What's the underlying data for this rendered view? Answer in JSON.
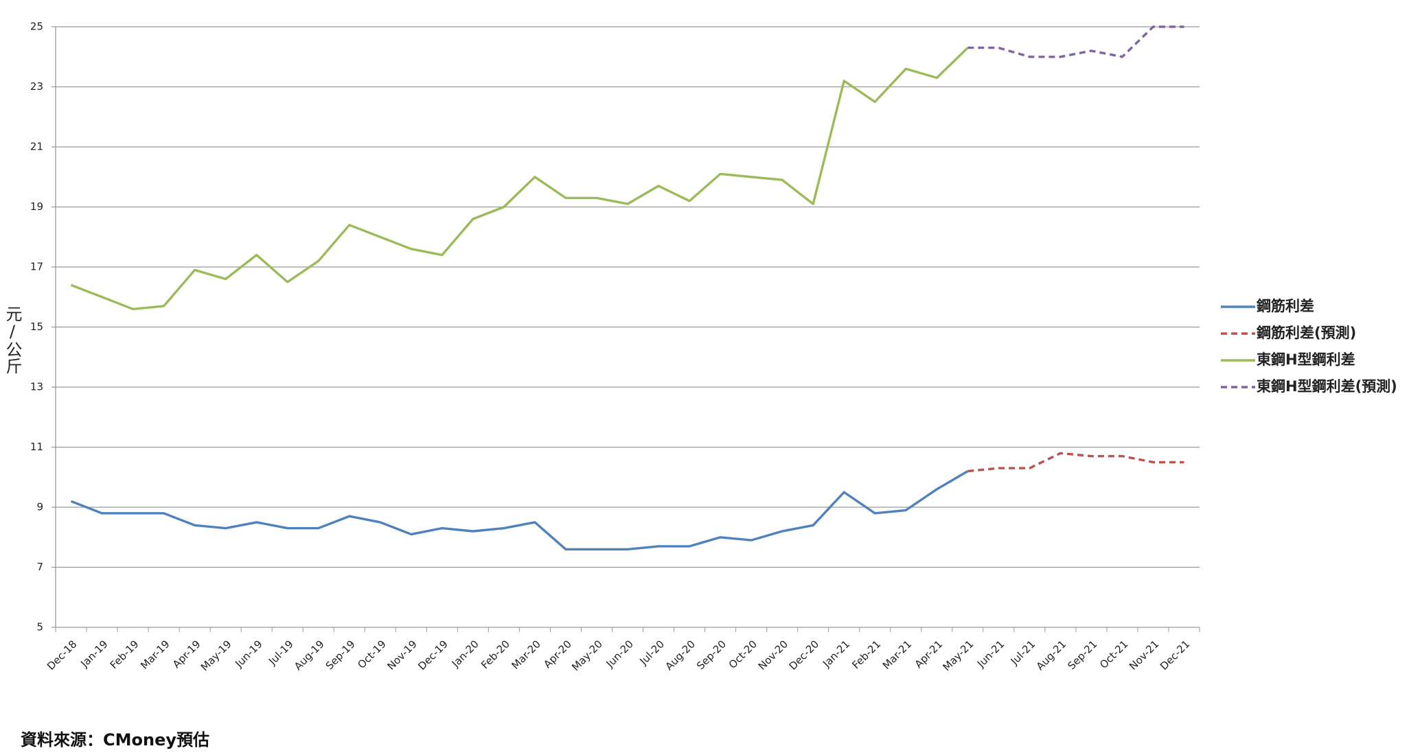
{
  "chart_data": {
    "type": "line",
    "y_label": "元/公斤",
    "source": "資料來源：CMoney預估",
    "categories": [
      "Dec-18",
      "Jan-19",
      "Feb-19",
      "Mar-19",
      "Apr-19",
      "May-19",
      "Jun-19",
      "Jul-19",
      "Aug-19",
      "Sep-19",
      "Oct-19",
      "Nov-19",
      "Dec-19",
      "Jan-20",
      "Feb-20",
      "Mar-20",
      "Apr-20",
      "May-20",
      "Jun-20",
      "Jul-20",
      "Aug-20",
      "Sep-20",
      "Oct-20",
      "Nov-20",
      "Dec-20",
      "Jan-21",
      "Feb-21",
      "Mar-21",
      "Apr-21",
      "May-21",
      "Jun-21",
      "Jul-21",
      "Aug-21",
      "Sep-21",
      "Oct-21",
      "Nov-21",
      "Dec-21"
    ],
    "series": [
      {
        "name": "鋼筋利差",
        "color": "#4f81bd",
        "dash": false,
        "values": [
          9.2,
          8.8,
          8.8,
          8.8,
          8.4,
          8.3,
          8.5,
          8.3,
          8.3,
          8.7,
          8.5,
          8.1,
          8.3,
          8.2,
          8.3,
          8.5,
          7.6,
          7.6,
          7.6,
          7.7,
          7.7,
          8.0,
          7.9,
          8.2,
          8.4,
          9.5,
          8.8,
          8.9,
          9.6,
          10.2,
          null,
          null,
          null,
          null,
          null,
          null,
          null
        ]
      },
      {
        "name": "鋼筋利差(預測)",
        "color": "#c0504d",
        "dash": true,
        "values": [
          null,
          null,
          null,
          null,
          null,
          null,
          null,
          null,
          null,
          null,
          null,
          null,
          null,
          null,
          null,
          null,
          null,
          null,
          null,
          null,
          null,
          null,
          null,
          null,
          null,
          null,
          null,
          null,
          null,
          10.2,
          10.3,
          10.3,
          10.8,
          10.7,
          10.7,
          10.5,
          10.5
        ]
      },
      {
        "name": "東鋼H型鋼利差",
        "color": "#9bbb59",
        "dash": false,
        "values": [
          16.4,
          16.0,
          15.6,
          15.7,
          16.9,
          16.6,
          17.4,
          16.5,
          17.2,
          18.4,
          18.0,
          17.6,
          17.4,
          18.6,
          19.0,
          20.0,
          19.3,
          19.3,
          19.1,
          19.7,
          19.2,
          20.1,
          20.0,
          19.9,
          19.1,
          23.2,
          22.5,
          23.6,
          23.3,
          24.3,
          null,
          null,
          null,
          null,
          null,
          null,
          null
        ]
      },
      {
        "name": "東鋼H型鋼利差(預測)",
        "color": "#8064a2",
        "dash": true,
        "values": [
          null,
          null,
          null,
          null,
          null,
          null,
          null,
          null,
          null,
          null,
          null,
          null,
          null,
          null,
          null,
          null,
          null,
          null,
          null,
          null,
          null,
          null,
          null,
          null,
          null,
          null,
          null,
          null,
          null,
          24.3,
          24.3,
          24.0,
          24.0,
          24.2,
          24.0,
          25.0,
          25.0
        ]
      }
    ],
    "ylim": [
      5,
      25
    ],
    "yticks": [
      5,
      7,
      9,
      11,
      13,
      15,
      17,
      19,
      21,
      23,
      25
    ],
    "grid": true
  }
}
